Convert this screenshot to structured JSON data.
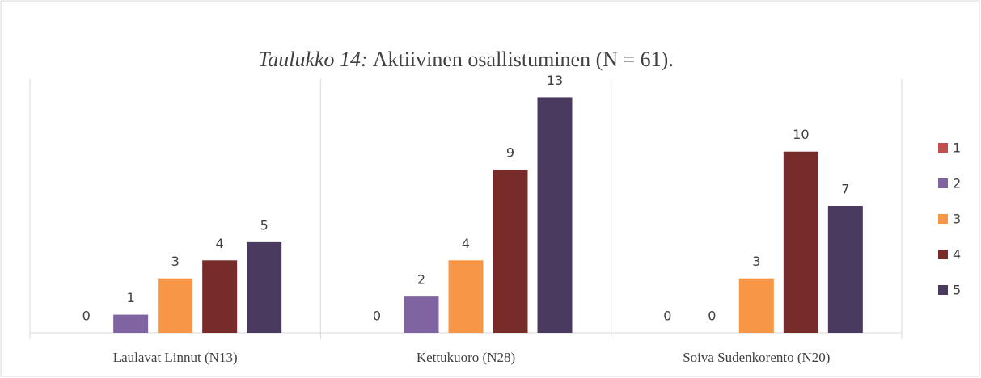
{
  "chart_data": {
    "type": "bar",
    "title_prefix": "Taulukko 14:",
    "title": "Aktiivinen osallistuminen (N = 61).",
    "categories": [
      "Laulavat Linnut (N13)",
      "Kettukuoro (N28)",
      "Soiva Sudenkorento (N20)"
    ],
    "series": [
      {
        "name": "1",
        "color": "#c0504d",
        "values": [
          0,
          0,
          0
        ]
      },
      {
        "name": "2",
        "color": "#8064a2",
        "values": [
          1,
          2,
          0
        ]
      },
      {
        "name": "3",
        "color": "#f79646",
        "values": [
          3,
          4,
          3
        ]
      },
      {
        "name": "4",
        "color": "#772c2a",
        "values": [
          4,
          9,
          10
        ]
      },
      {
        "name": "5",
        "color": "#4a3a5f",
        "values": [
          5,
          13,
          7
        ]
      }
    ],
    "ylim": [
      0,
      14
    ],
    "legend": "right"
  }
}
